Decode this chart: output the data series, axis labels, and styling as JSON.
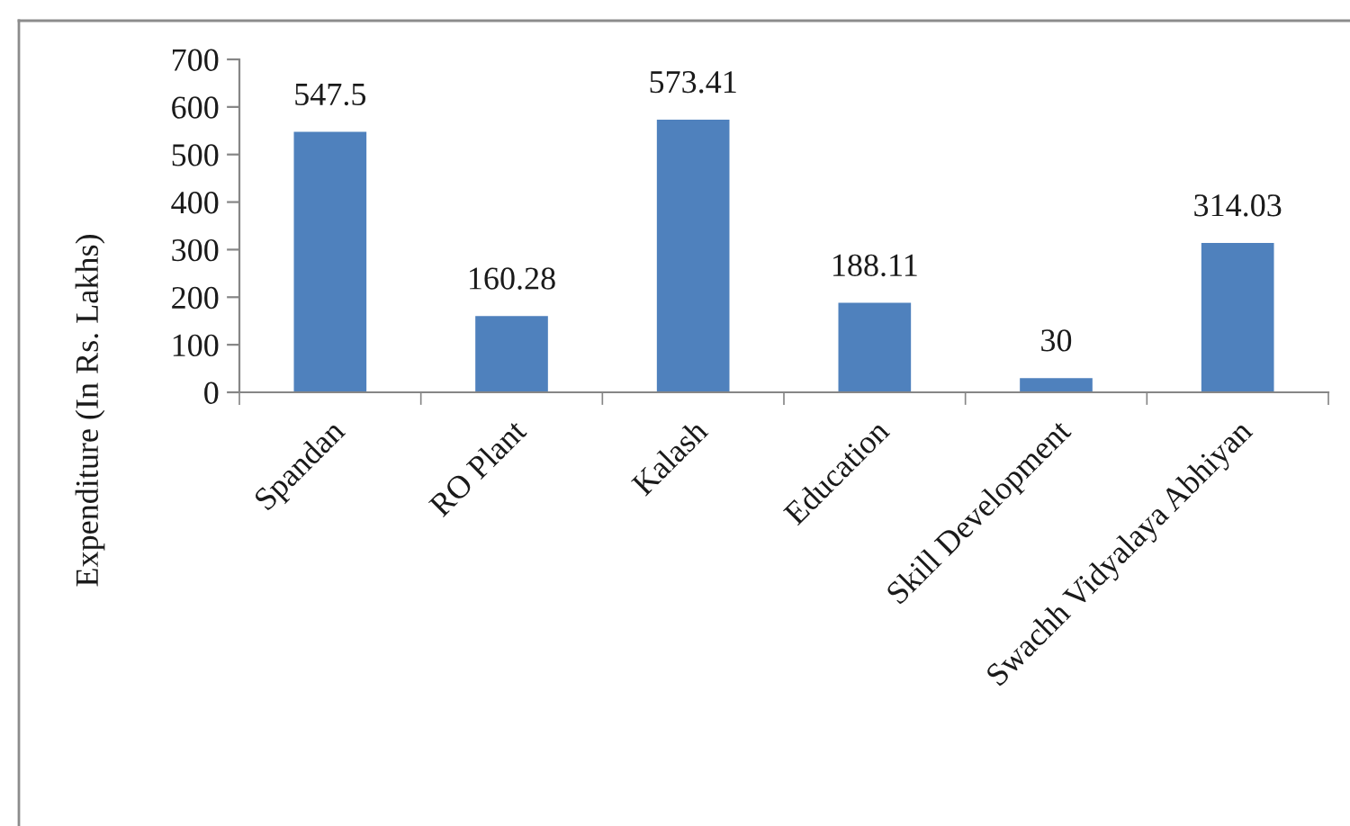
{
  "chart_data": {
    "type": "bar",
    "ylabel": "Expenditure (In Rs. Lakhs)",
    "categories": [
      "Spandan",
      "RO Plant",
      "Kalash",
      "Education",
      "Skill Development",
      "Swachh Vidyalaya Abhiyan"
    ],
    "values": [
      547.5,
      160.28,
      573.41,
      188.11,
      30,
      314.03
    ],
    "color": "#4f81bd",
    "ylim": [
      0,
      700
    ],
    "yticks": [
      0,
      100,
      200,
      300,
      400,
      500,
      600,
      700
    ],
    "grid": false,
    "legend": false,
    "data_labels": true
  }
}
